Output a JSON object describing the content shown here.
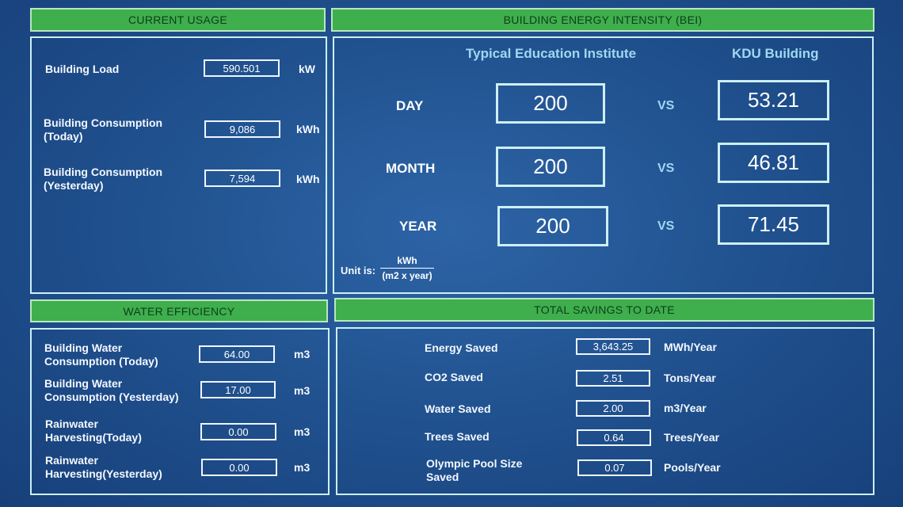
{
  "current_usage": {
    "title": "CURRENT USAGE",
    "rows": [
      {
        "label": "Building Load",
        "value": "590.501",
        "unit": "kW"
      },
      {
        "label_line1": "Building Consumption",
        "label_line2": "(Today)",
        "value": "9,086",
        "unit": "kWh"
      },
      {
        "label_line1": "Building Consumption",
        "label_line2": "(Yesterday)",
        "value": "7,594",
        "unit": "kWh"
      }
    ]
  },
  "bei": {
    "title": "BUILDING ENERGY INTENSITY (BEI)",
    "col_typical": "Typical Education Institute",
    "col_kdu": "KDU Building",
    "vs_label": "VS",
    "rows": [
      {
        "period": "DAY",
        "typical": "200",
        "kdu": "53.21"
      },
      {
        "period": "MONTH",
        "typical": "200",
        "kdu": "46.81"
      },
      {
        "period": "YEAR",
        "typical": "200",
        "kdu": "71.45"
      }
    ],
    "unit_label": "Unit is:",
    "unit_numerator": "kWh",
    "unit_denominator": "(m2 x year)"
  },
  "water": {
    "title": "WATER EFFICIENCY",
    "rows": [
      {
        "label_line1": "Building Water",
        "label_line2": "Consumption (Today)",
        "value": "64.00",
        "unit": "m3"
      },
      {
        "label_line1": "Building Water",
        "label_line2": "Consumption (Yesterday)",
        "value": "17.00",
        "unit": "m3"
      },
      {
        "label_line1": "Rainwater",
        "label_line2": "Harvesting(Today)",
        "value": "0.00",
        "unit": "m3"
      },
      {
        "label_line1": "Rainwater",
        "label_line2": "Harvesting(Yesterday)",
        "value": "0.00",
        "unit": "m3"
      }
    ]
  },
  "savings": {
    "title": "TOTAL SAVINGS TO DATE",
    "rows": [
      {
        "label_line1": "Energy Saved",
        "label_line2": "",
        "value": "3,643.25",
        "unit": "MWh/Year"
      },
      {
        "label_line1": "CO2 Saved",
        "label_line2": "",
        "value": "2.51",
        "unit": "Tons/Year"
      },
      {
        "label_line1": "Water Saved",
        "label_line2": "",
        "value": "2.00",
        "unit": "m3/Year"
      },
      {
        "label_line1": "Trees Saved",
        "label_line2": "",
        "value": "0.64",
        "unit": "Trees/Year"
      },
      {
        "label_line1": "Olympic Pool Size",
        "label_line2": "Saved",
        "value": "0.07",
        "unit": "Pools/Year"
      }
    ]
  }
}
